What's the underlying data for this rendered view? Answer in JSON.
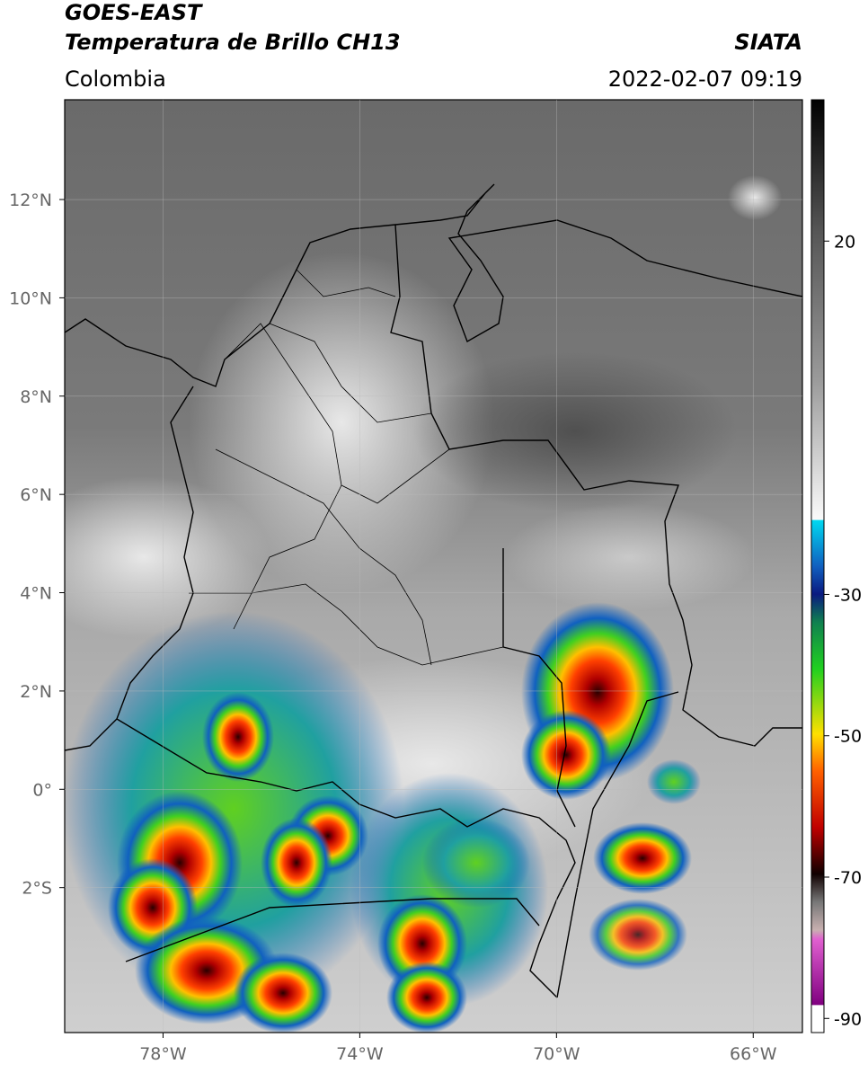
{
  "header": {
    "title": "GOES-EAST",
    "subtitle": "Temperatura de Brillo CH13",
    "region": "Colombia",
    "source": "SIATA",
    "timestamp": "2022-02-07 09:19"
  },
  "map": {
    "lon_range": [
      -80,
      -65
    ],
    "lat_range": [
      -4.95,
      14.03
    ],
    "lon_ticks": [
      {
        "value": -78,
        "label": "78°W"
      },
      {
        "value": -74,
        "label": "74°W"
      },
      {
        "value": -70,
        "label": "70°W"
      },
      {
        "value": -66,
        "label": "66°W"
      }
    ],
    "lat_ticks": [
      {
        "value": 12,
        "label": "12°N"
      },
      {
        "value": 10,
        "label": "10°N"
      },
      {
        "value": 8,
        "label": "8°N"
      },
      {
        "value": 6,
        "label": "6°N"
      },
      {
        "value": 4,
        "label": "4°N"
      },
      {
        "value": 2,
        "label": "2°N"
      },
      {
        "value": 0,
        "label": "0°"
      },
      {
        "value": -2,
        "label": "2°S"
      }
    ]
  },
  "colorbar": {
    "range": [
      -92,
      40
    ],
    "ticks": [
      20,
      -30,
      -50,
      -70,
      -90
    ]
  }
}
